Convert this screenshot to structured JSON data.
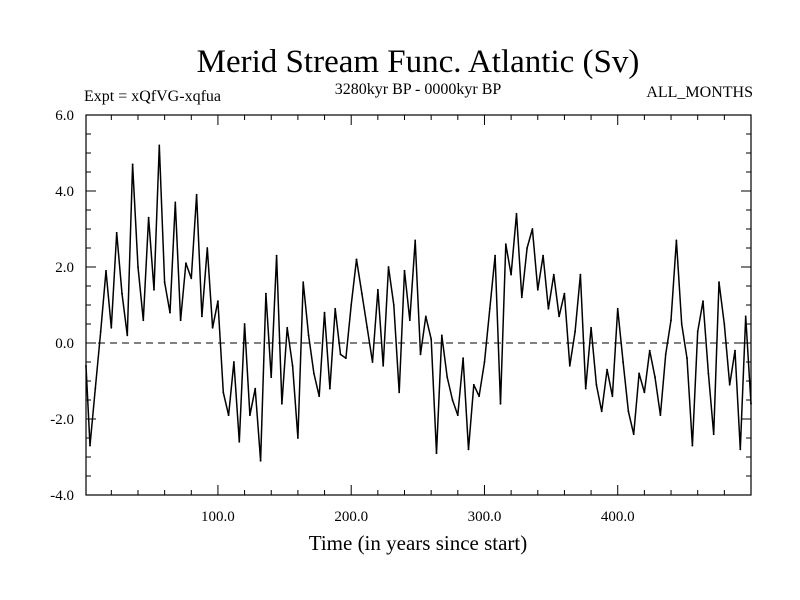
{
  "chart_data": {
    "type": "line",
    "title": "Merid Stream Func. Atlantic (Sv)",
    "subtitle_left": "Expt = xQfVG-xqfua",
    "subtitle_center": "3280kyr BP - 0000kyr BP",
    "subtitle_right": "ALL_MONTHS",
    "xlabel": "Time (in years since start)",
    "ylabel": "",
    "xlim": [
      1,
      500
    ],
    "ylim": [
      -4.0,
      6.0
    ],
    "x_ticks": [
      100,
      200,
      300,
      400
    ],
    "x_tick_labels": [
      "100.0",
      "200.0",
      "300.0",
      "400.0"
    ],
    "y_ticks": [
      -4,
      -2,
      0,
      2,
      4,
      6
    ],
    "y_tick_labels": [
      "-4.0",
      "-2.0",
      "0.0",
      "2.0",
      "4.0",
      "6.0"
    ],
    "zero_line": {
      "value": 0,
      "style": "dashed"
    },
    "series": [
      {
        "name": "Merid Stream Func.",
        "x": [
          1,
          4,
          8,
          12,
          16,
          20,
          24,
          28,
          32,
          36,
          40,
          44,
          48,
          52,
          56,
          60,
          64,
          68,
          72,
          76,
          80,
          84,
          88,
          92,
          96,
          100,
          104,
          108,
          112,
          116,
          120,
          124,
          128,
          132,
          136,
          140,
          144,
          148,
          152,
          156,
          160,
          164,
          168,
          172,
          176,
          180,
          184,
          188,
          192,
          196,
          200,
          204,
          208,
          212,
          216,
          220,
          224,
          228,
          232,
          236,
          240,
          244,
          248,
          252,
          256,
          260,
          264,
          268,
          272,
          276,
          280,
          284,
          288,
          292,
          296,
          300,
          304,
          308,
          312,
          316,
          320,
          324,
          328,
          332,
          336,
          340,
          344,
          348,
          352,
          356,
          360,
          364,
          368,
          372,
          376,
          380,
          384,
          388,
          392,
          396,
          400,
          404,
          408,
          412,
          416,
          420,
          424,
          428,
          432,
          436,
          440,
          444,
          448,
          452,
          456,
          460,
          464,
          468,
          472,
          476,
          480,
          484,
          488,
          492,
          496,
          500
        ],
        "values": [
          -0.6,
          -2.7,
          -1.2,
          0.3,
          1.9,
          0.4,
          2.9,
          1.3,
          0.2,
          4.7,
          2.0,
          0.6,
          3.3,
          1.4,
          5.2,
          1.6,
          0.8,
          3.7,
          0.6,
          2.1,
          1.7,
          3.9,
          0.7,
          2.5,
          0.4,
          1.1,
          -1.3,
          -1.9,
          -0.5,
          -2.6,
          0.5,
          -1.9,
          -1.2,
          -3.1,
          1.3,
          -0.9,
          2.3,
          -1.6,
          0.4,
          -0.6,
          -2.5,
          1.6,
          0.2,
          -0.8,
          -1.4,
          0.8,
          -1.2,
          0.9,
          -0.3,
          -0.4,
          1.0,
          2.2,
          1.3,
          0.4,
          -0.5,
          1.4,
          -0.6,
          2.0,
          1.0,
          -1.3,
          1.9,
          0.6,
          2.7,
          -0.3,
          0.7,
          0.1,
          -2.9,
          0.2,
          -0.9,
          -1.5,
          -1.9,
          -0.4,
          -2.8,
          -1.1,
          -1.4,
          -0.5,
          0.9,
          2.3,
          -1.6,
          2.6,
          1.8,
          3.4,
          1.2,
          2.5,
          3.0,
          1.4,
          2.3,
          0.9,
          1.8,
          0.7,
          1.3,
          -0.6,
          0.3,
          1.8,
          -1.2,
          0.4,
          -1.1,
          -1.8,
          -0.7,
          -1.4,
          0.9,
          -0.5,
          -1.8,
          -2.4,
          -0.8,
          -1.3,
          -0.2,
          -0.9,
          -1.9,
          -0.3,
          0.6,
          2.7,
          0.5,
          -0.4,
          -2.7,
          0.3,
          1.1,
          -0.8,
          -2.4,
          1.6,
          0.5,
          -1.1,
          -0.2,
          -2.8,
          0.7,
          -1.6
        ]
      }
    ]
  }
}
